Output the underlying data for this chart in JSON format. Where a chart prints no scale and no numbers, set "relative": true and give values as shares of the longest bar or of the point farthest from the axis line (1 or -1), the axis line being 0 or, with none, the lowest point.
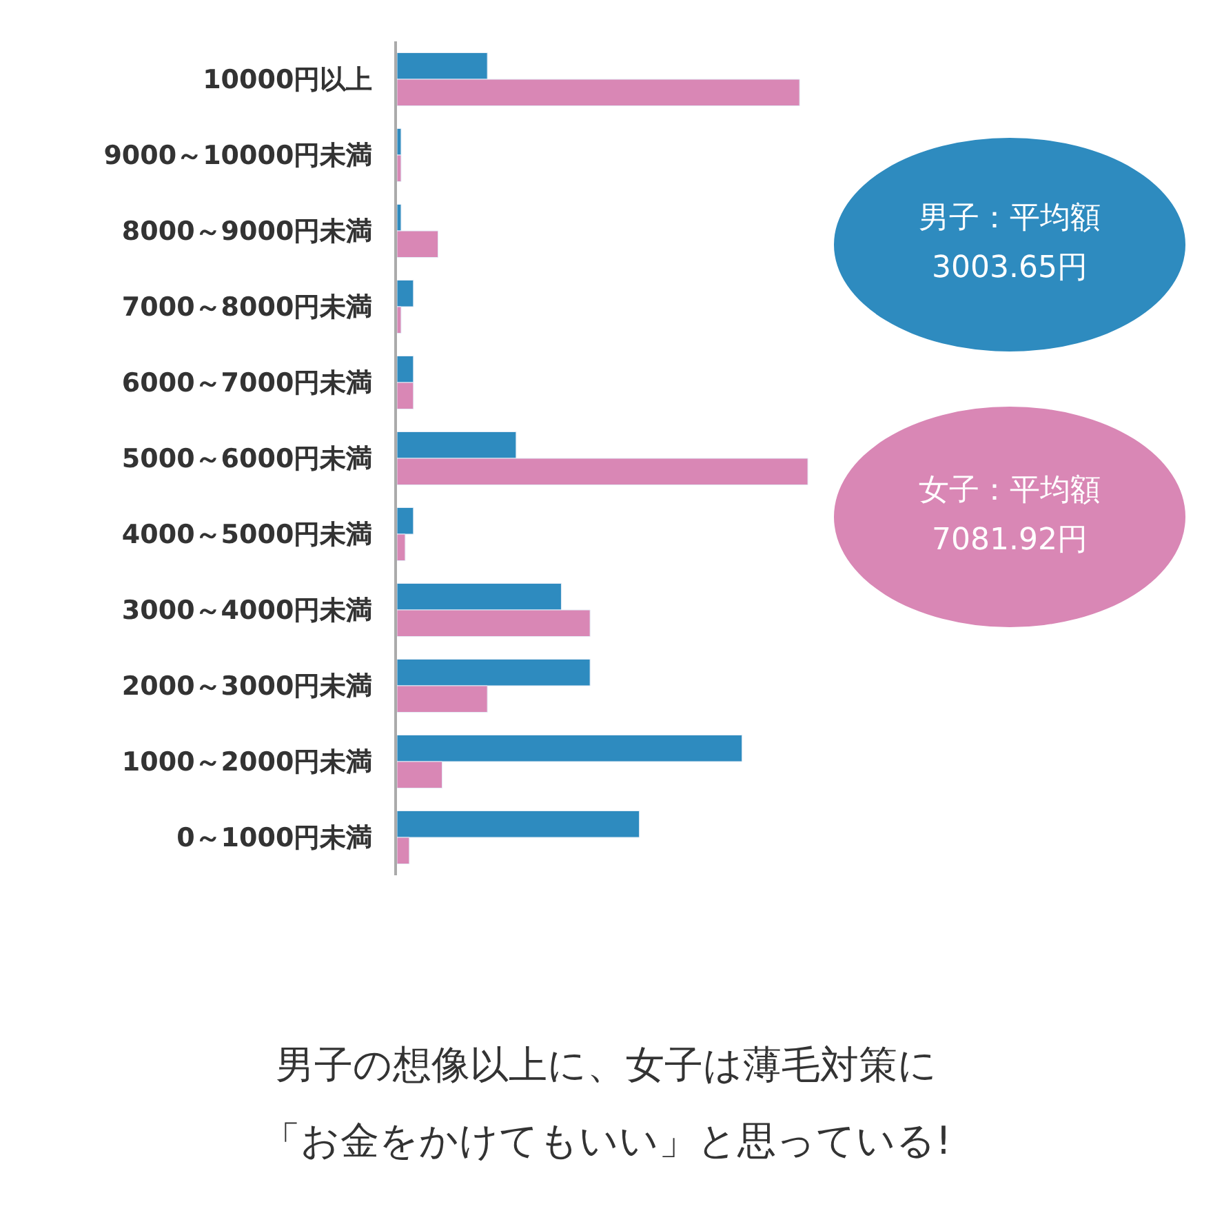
{
  "chart_data": {
    "type": "bar",
    "orientation": "horizontal",
    "relative": true,
    "categories": [
      "10000円以上",
      "9000～10000円未満",
      "8000～9000円未満",
      "7000～8000円未満",
      "6000～7000円未満",
      "5000～6000円未満",
      "4000～5000円未満",
      "3000～4000円未満",
      "2000～3000円未満",
      "1000～2000円未満",
      "0～1000円未満"
    ],
    "series": [
      {
        "color": "#2e8bbf",
        "values": [
          0.22,
          0.01,
          0.01,
          0.04,
          0.04,
          0.29,
          0.04,
          0.4,
          0.47,
          0.84,
          0.59
        ]
      },
      {
        "color": "#d987b5",
        "values": [
          0.98,
          0.01,
          0.1,
          0.01,
          0.04,
          1.0,
          0.02,
          0.47,
          0.22,
          0.11,
          0.03
        ]
      }
    ],
    "annotations": [
      "男子：平均額",
      "3003.65円",
      "女子：平均額",
      "7081.92円",
      "男子の想像以上に、女子は薄毛対策に",
      "「お金をかけてもいい」と思っている!"
    ]
  }
}
